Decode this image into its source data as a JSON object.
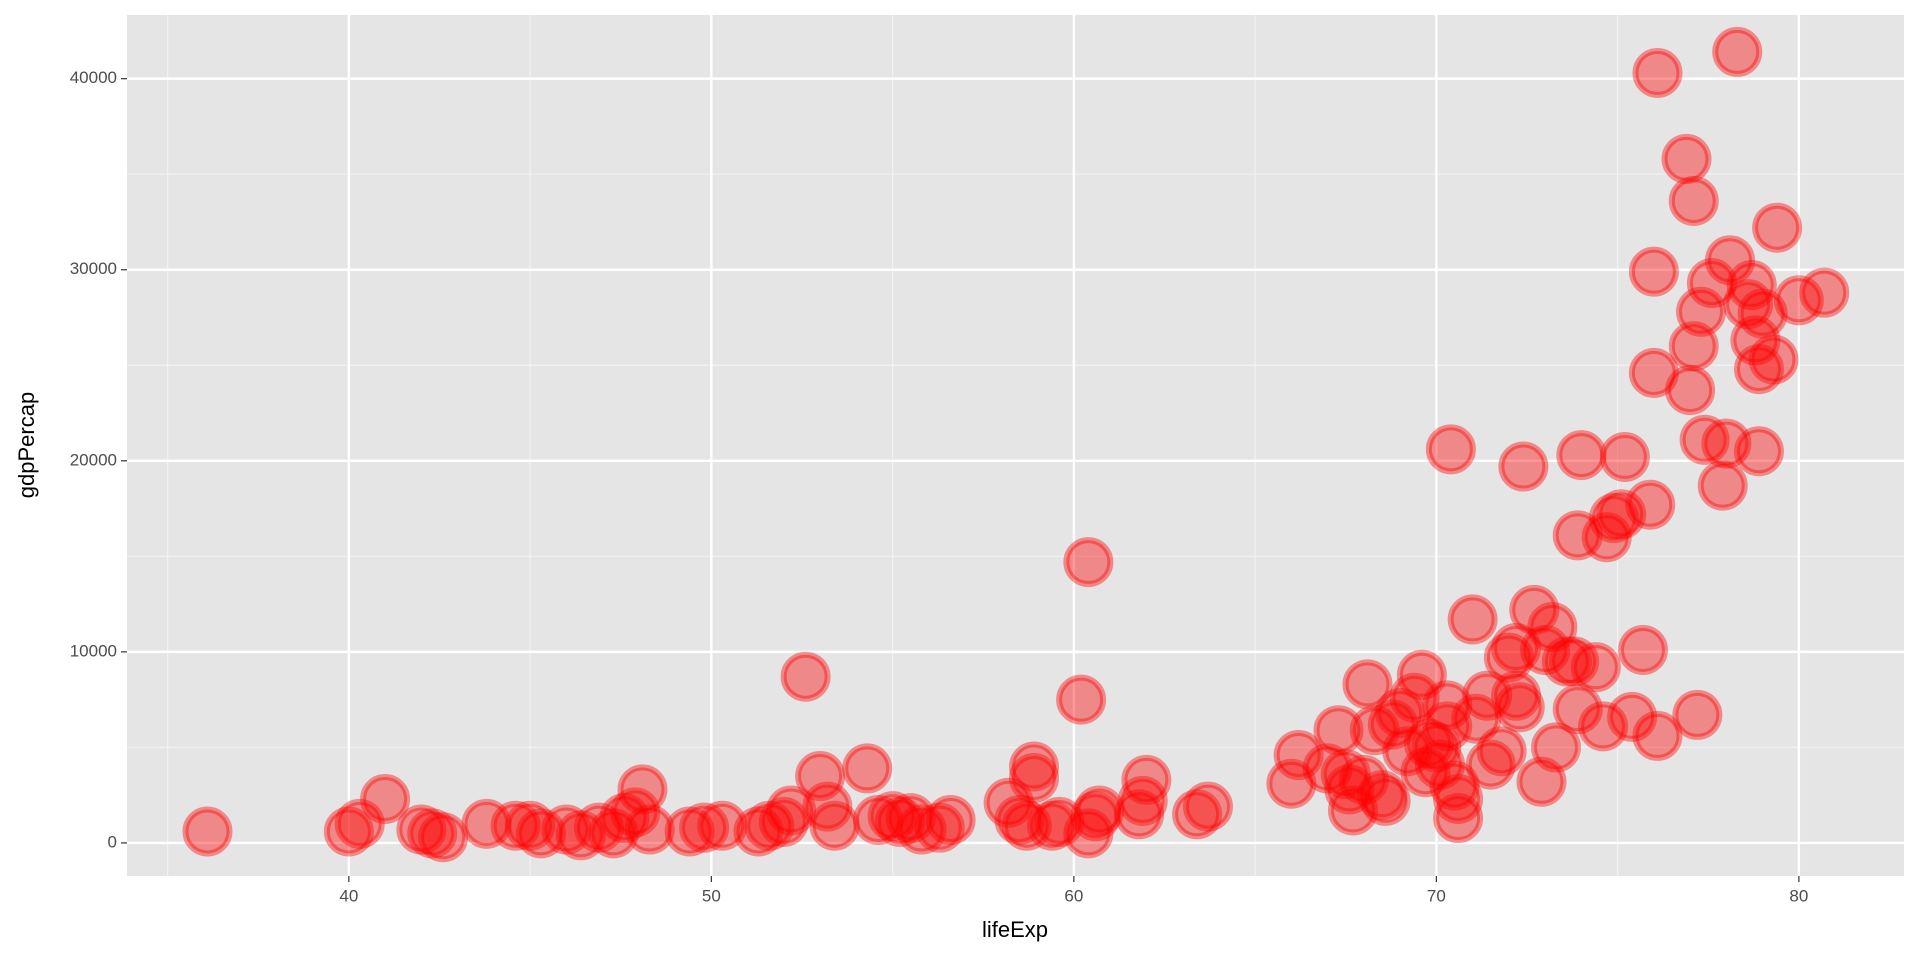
{
  "chart_data": {
    "type": "scatter",
    "x_label": "lifeExp",
    "y_label": "gdpPercap",
    "xlim": [
      33.88,
      82.9
    ],
    "ylim": [
      -1731,
      43333
    ],
    "xticks": [
      40,
      50,
      60,
      70,
      80
    ],
    "yticks": [
      0,
      10000,
      20000,
      30000,
      40000
    ],
    "xminorticks": [
      35,
      45,
      55,
      65,
      75
    ],
    "yminorticks": [
      5000,
      15000,
      25000,
      35000
    ],
    "grid": true,
    "series": [
      {
        "color": "#ff0000",
        "x": [
          36.1,
          40.0,
          40.3,
          41.0,
          42.0,
          42.3,
          42.6,
          43.8,
          44.6,
          45.0,
          45.3,
          46.0,
          46.4,
          46.9,
          47.3,
          47.6,
          47.9,
          48.1,
          48.3,
          49.4,
          49.8,
          50.3,
          51.3,
          51.6,
          52.0,
          52.2,
          52.6,
          53.0,
          53.2,
          53.4,
          54.3,
          54.6,
          55.0,
          55.2,
          55.5,
          55.8,
          56.3,
          56.6,
          58.2,
          58.5,
          58.7,
          58.9,
          58.9,
          59.4,
          59.6,
          60.2,
          60.4,
          60.4,
          60.6,
          60.7,
          61.8,
          61.9,
          62.0,
          63.4,
          63.7,
          66.0,
          66.2,
          67.0,
          67.3,
          67.5,
          67.6,
          67.7,
          68.0,
          68.1,
          68.3,
          68.5,
          68.6,
          68.8,
          69.0,
          69.2,
          69.4,
          69.6,
          69.7,
          69.8,
          70.0,
          70.1,
          70.3,
          70.3,
          70.5,
          70.6,
          70.4,
          70.6,
          71.0,
          71.1,
          71.4,
          71.5,
          71.8,
          72.0,
          72.2,
          72.2,
          72.3,
          72.4,
          72.7,
          72.9,
          73.0,
          73.2,
          73.3,
          73.6,
          73.8,
          73.9,
          73.9,
          74.0,
          74.4,
          74.7,
          74.9,
          74.6,
          75.1,
          75.2,
          75.4,
          75.7,
          75.9,
          76.0,
          76.0,
          76.1,
          76.1,
          76.9,
          77.1,
          77.0,
          77.1,
          77.2,
          77.3,
          77.4,
          77.6,
          77.9,
          78.0,
          78.1,
          78.3,
          78.6,
          78.7,
          78.8,
          78.9,
          78.9,
          79.0,
          79.3,
          79.4,
          80.0,
          80.7
        ],
        "values": [
          600,
          600,
          1000,
          2300,
          700,
          500,
          300,
          1000,
          900,
          900,
          500,
          700,
          400,
          800,
          500,
          1300,
          1600,
          2800,
          700,
          600,
          800,
          900,
          600,
          900,
          1100,
          1700,
          8700,
          3500,
          1900,
          900,
          3900,
          1200,
          1400,
          1100,
          1300,
          700,
          800,
          1200,
          2100,
          1200,
          900,
          3400,
          4000,
          900,
          1100,
          7500,
          14700,
          500,
          1400,
          1700,
          1500,
          2200,
          3300,
          1500,
          1900,
          3100,
          4600,
          3900,
          5900,
          3600,
          2800,
          1700,
          3300,
          8300,
          5900,
          2500,
          2200,
          6200,
          6800,
          4800,
          7600,
          8800,
          3700,
          5200,
          5000,
          4100,
          7200,
          6100,
          3000,
          2300,
          20600,
          1300,
          11700,
          6500,
          7700,
          4100,
          4800,
          9700,
          10200,
          7700,
          7100,
          19700,
          12200,
          3200,
          10100,
          11300,
          5000,
          9500,
          9500,
          7000,
          16100,
          20300,
          9200,
          16000,
          17000,
          6100,
          17200,
          20200,
          6600,
          10100,
          17700,
          24600,
          29900,
          40300,
          5600,
          35800,
          33600,
          23700,
          26000,
          6700,
          27800,
          21100,
          29300,
          18700,
          20900,
          30500,
          41400,
          28200,
          29200,
          26300,
          24800,
          20500,
          27700,
          25300,
          32200,
          28400,
          28800
        ]
      }
    ]
  }
}
